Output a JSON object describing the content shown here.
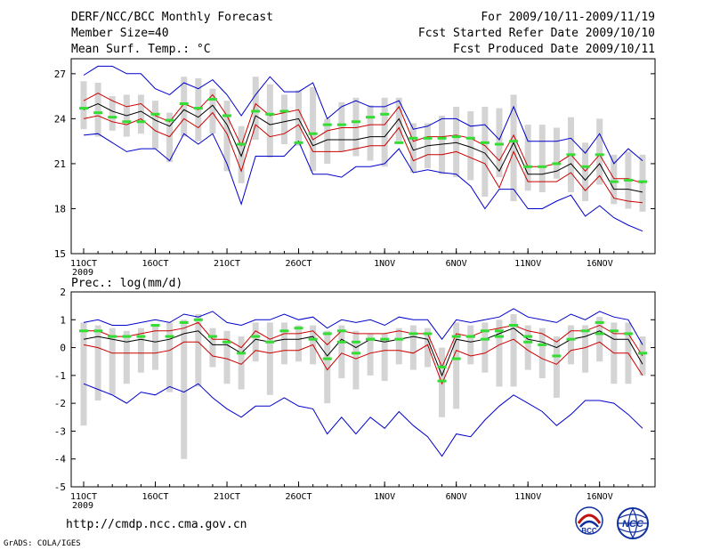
{
  "header": {
    "title": "DERF/NCC/BCC Monthly Forecast",
    "member_size": "Member Size=40",
    "variable": "Mean Surf. Temp.: °C",
    "forecast_period": "For 2009/10/11-2009/11/19",
    "start_date": "Fcst Started Refer Date 2009/10/10",
    "produced_date": "Fcst Produced Date 2009/10/11"
  },
  "footer": {
    "url": "http://cmdp.ncc.cma.gov.cn",
    "credit": "GrADS: COLA/IGES",
    "logo_bcc": "BCC",
    "logo_ncc": "NCC"
  },
  "colors": {
    "envelope": "#0000cc",
    "spread": "#cc0000",
    "mean": "#000000",
    "control": "#33dd33",
    "box": "#d4d4d4"
  },
  "chart_data": [
    {
      "type": "line",
      "title": "Mean Surf. Temp.: °C",
      "ylim": [
        15,
        28
      ],
      "yticks": [
        15,
        18,
        21,
        24,
        27
      ],
      "xticks": [
        {
          "day": 1,
          "label": "11OCT"
        },
        {
          "day": 6,
          "label": "16OCT"
        },
        {
          "day": 11,
          "label": "21OCT"
        },
        {
          "day": 16,
          "label": "26OCT"
        },
        {
          "day": 22,
          "label": "1NOV"
        },
        {
          "day": 27,
          "label": "6NOV"
        },
        {
          "day": 32,
          "label": "11NOV"
        },
        {
          "day": 37,
          "label": "16NOV"
        }
      ],
      "year_label": "2009",
      "x": [
        1,
        2,
        3,
        4,
        5,
        6,
        7,
        8,
        9,
        10,
        11,
        12,
        13,
        14,
        15,
        16,
        17,
        18,
        19,
        20,
        21,
        22,
        23,
        24,
        25,
        26,
        27,
        28,
        29,
        30,
        31,
        32,
        33,
        34,
        35,
        36,
        37,
        38,
        39,
        40
      ],
      "series": [
        {
          "name": "max",
          "color_key": "envelope",
          "values": [
            26.9,
            27.5,
            27.5,
            27.0,
            27.0,
            26.0,
            25.6,
            26.4,
            26.0,
            26.6,
            25.6,
            24.2,
            25.6,
            26.8,
            25.8,
            25.8,
            26.4,
            24.0,
            24.8,
            25.2,
            24.8,
            24.8,
            25.2,
            23.3,
            23.5,
            24.0,
            24.0,
            23.5,
            23.6,
            22.6,
            24.8,
            22.5,
            22.5,
            22.5,
            22.7,
            21.7,
            23.0,
            21.0,
            22.0,
            21.2
          ]
        },
        {
          "name": "upper",
          "color_key": "spread",
          "values": [
            25.2,
            25.7,
            25.2,
            24.8,
            25.0,
            24.2,
            23.8,
            25.0,
            24.6,
            25.6,
            24.2,
            22.2,
            25.0,
            24.2,
            24.4,
            24.6,
            22.6,
            23.2,
            23.4,
            23.4,
            23.6,
            23.6,
            24.8,
            22.5,
            22.8,
            22.8,
            22.9,
            22.7,
            22.2,
            21.2,
            22.9,
            20.8,
            20.8,
            21.0,
            21.6,
            20.5,
            21.6,
            20.0,
            20.0,
            19.7
          ]
        },
        {
          "name": "mean",
          "color_key": "mean",
          "values": [
            24.6,
            25.0,
            24.5,
            24.2,
            24.5,
            23.9,
            23.5,
            24.6,
            24.1,
            24.9,
            23.6,
            21.5,
            24.2,
            23.6,
            23.8,
            24.0,
            22.2,
            22.6,
            22.6,
            22.6,
            22.8,
            22.8,
            24.0,
            21.9,
            22.2,
            22.3,
            22.4,
            22.1,
            21.7,
            20.5,
            22.4,
            20.3,
            20.3,
            20.5,
            21.0,
            19.9,
            21.0,
            19.3,
            19.3,
            19.1
          ]
        },
        {
          "name": "lower",
          "color_key": "spread",
          "values": [
            24.0,
            24.2,
            23.8,
            23.6,
            24.0,
            23.2,
            22.8,
            24.0,
            23.4,
            24.4,
            23.0,
            20.5,
            23.6,
            22.8,
            23.0,
            23.6,
            21.8,
            21.8,
            21.8,
            22.0,
            22.2,
            22.2,
            23.4,
            21.2,
            21.6,
            21.6,
            21.8,
            21.4,
            21.0,
            19.4,
            21.8,
            19.8,
            19.8,
            19.8,
            20.4,
            19.2,
            20.2,
            18.7,
            18.5,
            18.4
          ]
        },
        {
          "name": "min",
          "color_key": "envelope",
          "values": [
            22.9,
            23.0,
            22.4,
            21.8,
            22.0,
            22.0,
            21.2,
            23.0,
            22.3,
            23.0,
            21.0,
            18.3,
            21.5,
            21.5,
            21.5,
            22.5,
            20.3,
            20.3,
            20.1,
            20.8,
            20.8,
            21.0,
            22.0,
            20.4,
            20.6,
            20.4,
            20.3,
            19.5,
            18.0,
            19.3,
            19.3,
            18.0,
            18.0,
            18.5,
            18.9,
            17.5,
            18.2,
            17.4,
            16.9,
            16.5
          ]
        },
        {
          "name": "control",
          "color_key": "control",
          "style": "dash",
          "values": [
            24.7,
            24.4,
            24.1,
            23.8,
            23.8,
            24.3,
            23.9,
            25.0,
            24.7,
            25.3,
            24.2,
            22.3,
            24.5,
            24.3,
            24.5,
            22.4,
            23.0,
            23.6,
            23.6,
            23.8,
            24.1,
            24.3,
            22.4,
            22.7,
            22.7,
            22.7,
            22.8,
            22.7,
            22.4,
            22.3,
            22.5,
            20.8,
            20.8,
            21.0,
            21.6,
            20.8,
            21.6,
            19.8,
            19.9,
            19.8
          ]
        }
      ],
      "boxes": {
        "color_key": "box",
        "high": [
          26.5,
          26.4,
          25.5,
          25.6,
          25.6,
          25.2,
          24.4,
          26.8,
          26.7,
          26.0,
          25.2,
          23.5,
          26.8,
          26.3,
          25.6,
          25.9,
          26.1,
          24.0,
          25.1,
          25.4,
          24.9,
          25.4,
          25.4,
          23.7,
          23.7,
          24.2,
          24.8,
          24.5,
          24.8,
          24.7,
          25.6,
          23.6,
          23.6,
          23.4,
          24.1,
          22.4,
          24.0,
          21.6,
          21.8,
          21.6
        ],
        "low": [
          23.3,
          22.8,
          23.2,
          22.8,
          23.0,
          22.0,
          21.1,
          22.8,
          22.5,
          23.0,
          20.5,
          19.7,
          22.6,
          21.4,
          22.3,
          22.2,
          20.5,
          21.0,
          21.8,
          21.5,
          21.2,
          20.8,
          22.5,
          20.4,
          20.7,
          20.3,
          20.1,
          19.9,
          18.8,
          20.1,
          18.5,
          19.2,
          19.1,
          20.0,
          19.1,
          18.5,
          19.6,
          18.3,
          18.0,
          17.8
        ]
      }
    },
    {
      "type": "line",
      "title": "Prec.: log(mm/d)",
      "ylim": [
        -5,
        2
      ],
      "yticks": [
        -5,
        -4,
        -3,
        -2,
        -1,
        0,
        1,
        2
      ],
      "xticks": [
        {
          "day": 1,
          "label": "11OCT"
        },
        {
          "day": 6,
          "label": "16OCT"
        },
        {
          "day": 11,
          "label": "21OCT"
        },
        {
          "day": 16,
          "label": "26OCT"
        },
        {
          "day": 22,
          "label": "1NOV"
        },
        {
          "day": 27,
          "label": "6NOV"
        },
        {
          "day": 32,
          "label": "11NOV"
        },
        {
          "day": 37,
          "label": "16NOV"
        }
      ],
      "year_label": "2009",
      "x": [
        1,
        2,
        3,
        4,
        5,
        6,
        7,
        8,
        9,
        10,
        11,
        12,
        13,
        14,
        15,
        16,
        17,
        18,
        19,
        20,
        21,
        22,
        23,
        24,
        25,
        26,
        27,
        28,
        29,
        30,
        31,
        32,
        33,
        34,
        35,
        36,
        37,
        38,
        39,
        40
      ],
      "series": [
        {
          "name": "max",
          "color_key": "envelope",
          "values": [
            0.9,
            1.0,
            0.8,
            0.8,
            0.9,
            1.0,
            0.9,
            1.2,
            1.1,
            1.3,
            0.9,
            0.8,
            1.0,
            1.0,
            1.2,
            1.0,
            1.1,
            0.7,
            1.0,
            0.9,
            1.0,
            0.8,
            1.1,
            1.0,
            1.0,
            0.3,
            1.0,
            0.9,
            1.0,
            1.1,
            1.4,
            1.1,
            1.0,
            0.9,
            1.2,
            1.0,
            1.3,
            1.1,
            1.0,
            0.1
          ]
        },
        {
          "name": "upper",
          "color_key": "spread",
          "values": [
            0.6,
            0.6,
            0.4,
            0.4,
            0.5,
            0.6,
            0.6,
            0.7,
            0.9,
            0.3,
            0.3,
            0.0,
            0.6,
            0.3,
            0.5,
            0.5,
            0.6,
            0.1,
            0.6,
            0.5,
            0.5,
            0.5,
            0.6,
            0.5,
            0.5,
            -0.7,
            0.5,
            0.4,
            0.6,
            0.7,
            0.8,
            0.6,
            0.5,
            0.2,
            0.6,
            0.6,
            0.8,
            0.5,
            0.5,
            -0.3
          ]
        },
        {
          "name": "mean",
          "color_key": "mean",
          "values": [
            0.3,
            0.4,
            0.3,
            0.2,
            0.3,
            0.2,
            0.3,
            0.5,
            0.6,
            0.1,
            0.1,
            -0.2,
            0.3,
            0.2,
            0.3,
            0.3,
            0.4,
            -0.3,
            0.3,
            0.0,
            0.3,
            0.2,
            0.3,
            0.4,
            0.3,
            -1.0,
            0.3,
            0.2,
            0.3,
            0.5,
            0.7,
            0.3,
            0.2,
            0.0,
            0.3,
            0.4,
            0.6,
            0.3,
            0.3,
            -0.6
          ]
        },
        {
          "name": "lower",
          "color_key": "spread",
          "values": [
            0.1,
            0.0,
            -0.2,
            -0.2,
            -0.2,
            -0.2,
            -0.1,
            0.2,
            0.2,
            -0.3,
            -0.4,
            -0.6,
            -0.1,
            -0.2,
            -0.1,
            -0.1,
            0.1,
            -0.8,
            -0.2,
            -0.4,
            -0.2,
            -0.1,
            -0.1,
            -0.2,
            0.1,
            -1.3,
            -0.1,
            -0.3,
            -0.2,
            0.1,
            0.3,
            -0.1,
            -0.4,
            -0.6,
            -0.1,
            0.0,
            0.2,
            -0.2,
            -0.2,
            -1.0
          ]
        },
        {
          "name": "min",
          "color_key": "envelope",
          "values": [
            -1.3,
            -1.5,
            -1.7,
            -2.0,
            -1.6,
            -1.7,
            -1.4,
            -1.6,
            -1.3,
            -1.8,
            -2.2,
            -2.5,
            -2.1,
            -2.1,
            -1.8,
            -2.1,
            -2.2,
            -3.1,
            -2.5,
            -3.1,
            -2.5,
            -2.9,
            -2.3,
            -2.8,
            -3.2,
            -3.9,
            -3.1,
            -3.2,
            -2.6,
            -2.1,
            -1.7,
            -2.0,
            -2.3,
            -2.8,
            -2.4,
            -1.9,
            -1.9,
            -2.0,
            -2.4,
            -2.9
          ]
        },
        {
          "name": "control",
          "color_key": "control",
          "style": "dash",
          "values": [
            0.6,
            0.6,
            0.4,
            0.4,
            0.4,
            0.8,
            0.4,
            0.9,
            1.0,
            0.4,
            0.2,
            -0.2,
            0.4,
            0.2,
            0.6,
            0.7,
            0.3,
            -0.4,
            0.2,
            -0.2,
            0.3,
            0.3,
            0.3,
            0.5,
            0.5,
            -1.2,
            -0.4,
            0.4,
            0.3,
            0.4,
            0.8,
            0.4,
            0.1,
            -0.3,
            0.3,
            0.6,
            0.9,
            0.6,
            0.5,
            -0.2
          ]
        },
        {
          "name": "control_b",
          "color_key": "control",
          "style": "dash",
          "values": [
            null,
            null,
            null,
            null,
            null,
            null,
            null,
            null,
            null,
            null,
            null,
            null,
            null,
            null,
            null,
            null,
            null,
            0.5,
            0.6,
            0.2,
            0.3,
            null,
            null,
            null,
            null,
            -0.7,
            0.4,
            0.4,
            0.6,
            0.6,
            0.8,
            0.2,
            null,
            null,
            null,
            null,
            0.5,
            null,
            null,
            null
          ]
        }
      ],
      "boxes": {
        "color_key": "box",
        "high": [
          0.9,
          0.8,
          0.7,
          0.6,
          0.7,
          0.8,
          0.9,
          1.0,
          1.2,
          0.7,
          0.6,
          0.4,
          0.9,
          0.9,
          0.9,
          0.8,
          0.8,
          0.6,
          0.8,
          0.6,
          0.5,
          0.5,
          0.7,
          0.8,
          0.7,
          0.0,
          0.9,
          0.8,
          0.9,
          1.0,
          1.2,
          0.8,
          0.7,
          0.4,
          0.8,
          0.8,
          1.1,
          0.9,
          0.9,
          0.4
        ],
        "low": [
          -2.8,
          -1.9,
          -1.7,
          -1.3,
          -0.9,
          -0.8,
          -1.6,
          -4.0,
          -1.4,
          -0.7,
          -1.3,
          -1.5,
          -0.5,
          -1.7,
          -0.6,
          -0.5,
          -0.6,
          -2.0,
          -1.1,
          -1.5,
          -1.0,
          -1.2,
          -0.6,
          -0.8,
          -0.7,
          -2.5,
          -2.2,
          -0.6,
          -0.9,
          -1.4,
          -1.4,
          -0.8,
          -1.1,
          -1.8,
          -0.6,
          -0.9,
          -0.5,
          -1.3,
          -1.3,
          -1.0
        ]
      }
    }
  ]
}
